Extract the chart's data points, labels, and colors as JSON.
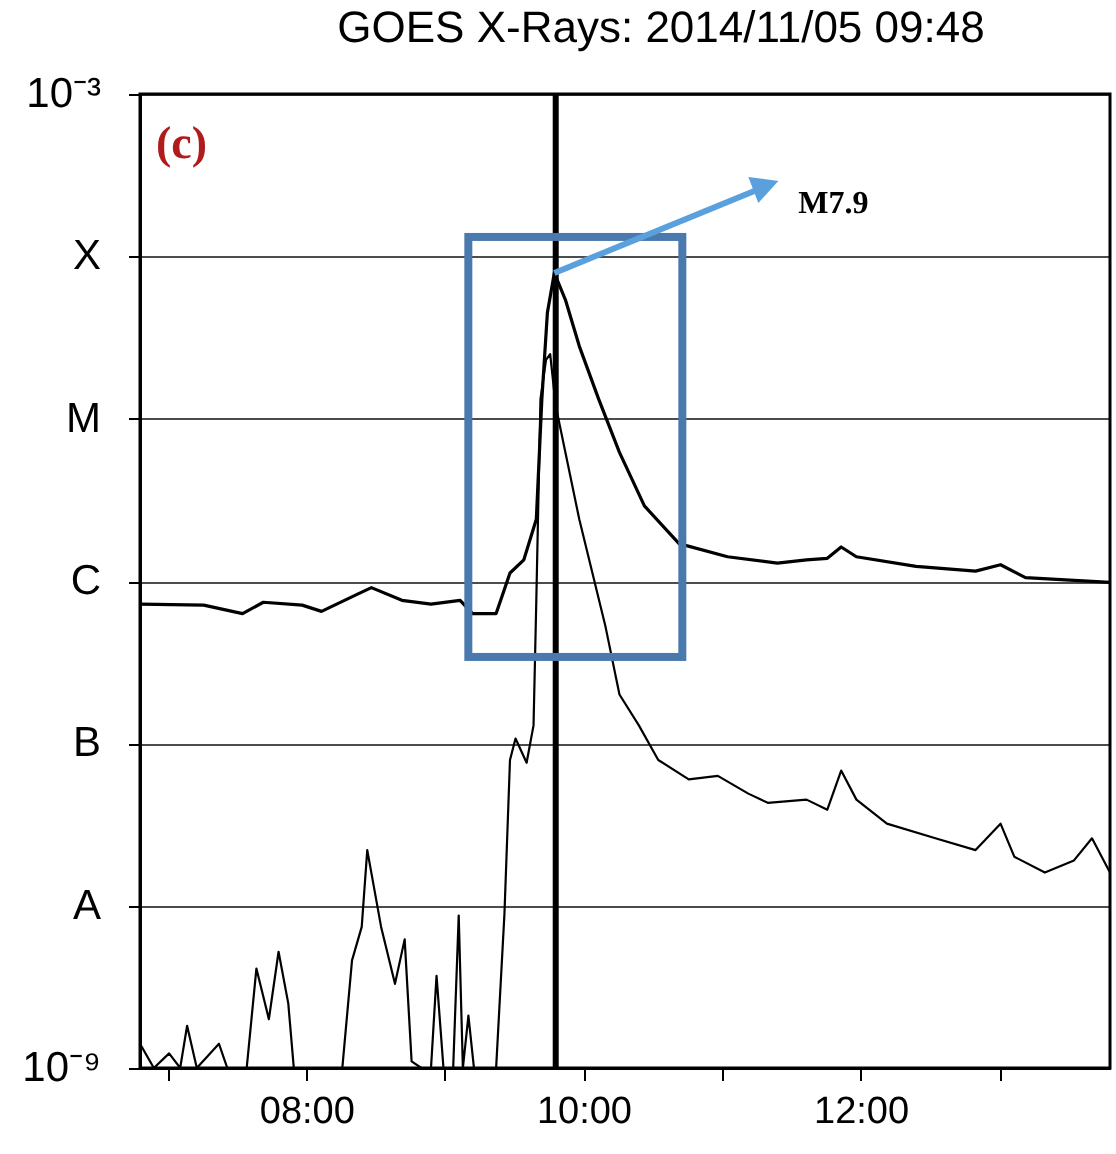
{
  "chart_data": {
    "type": "line",
    "title": "GOES X-Rays: 2014/11/05 09:48",
    "xlim": [
      6.8,
      13.8
    ],
    "xticks": [
      {
        "value": 7,
        "label": null
      },
      {
        "value": 8,
        "label": "08:00"
      },
      {
        "value": 9,
        "label": null
      },
      {
        "value": 10,
        "label": "10:00"
      },
      {
        "value": 11,
        "label": null
      },
      {
        "value": 12,
        "label": "12:00"
      },
      {
        "value": 13,
        "label": null
      }
    ],
    "ylim": [
      1e-09,
      0.001
    ],
    "log": true,
    "yticks": [
      {
        "value": 1e-09,
        "label": "10⁻⁹"
      },
      {
        "value": 1e-08,
        "label": "A"
      },
      {
        "value": 1e-07,
        "label": "B"
      },
      {
        "value": 1e-06,
        "label": "C"
      },
      {
        "value": 1e-05,
        "label": "M"
      },
      {
        "value": 0.0001,
        "label": "X"
      },
      {
        "value": 0.001,
        "label": "10⁻³"
      }
    ],
    "grid": "y",
    "marker": "none",
    "line_style": "solid",
    "series": [
      {
        "color": "#000000",
        "x": [
          6.8,
          7.26,
          7.54,
          7.69,
          7.97,
          8.11,
          8.37,
          8.47,
          8.69,
          8.9,
          9.11,
          9.2,
          9.37,
          9.47,
          9.57,
          9.66,
          9.7,
          9.74,
          9.79,
          9.87,
          9.97,
          10.11,
          10.26,
          10.44,
          10.69,
          11.04,
          11.4,
          11.61,
          11.76,
          11.86,
          11.97,
          12.4,
          12.83,
          13.01,
          13.19,
          13.8
        ],
        "values": [
          7.2e-07,
          7.1e-07,
          6.3e-07,
          7.4e-07,
          7.1e-07,
          6.5e-07,
          8.3e-07,
          9.1e-07,
          7.6e-07,
          7.2e-07,
          7.6e-07,
          6.3e-07,
          6.3e-07,
          1.12e-06,
          1.35e-06,
          2.4e-06,
          1.32e-05,
          4.5e-05,
          7.9e-05,
          5.4e-05,
          2.8e-05,
          1.32e-05,
          6.2e-06,
          2.9e-06,
          1.7e-06,
          1.41e-06,
          1.29e-06,
          1.35e-06,
          1.38e-06,
          1.62e-06,
          1.41e-06,
          1.23e-06,
          1.15e-06,
          1.26e-06,
          1.05e-06,
          9.8e-07
        ]
      },
      {
        "color": "#000000",
        "x": [
          6.8,
          6.9,
          7.01,
          7.09,
          7.14,
          7.21,
          7.37,
          7.43,
          7.57,
          7.64,
          7.73,
          7.8,
          7.87,
          7.91,
          8.26,
          8.33,
          8.4,
          8.44,
          8.54,
          8.64,
          8.71,
          8.76,
          8.83,
          8.9,
          8.94,
          8.99,
          9.06,
          9.1,
          9.13,
          9.17,
          9.21,
          9.37,
          9.43,
          9.47,
          9.51,
          9.59,
          9.64,
          9.66,
          9.69,
          9.73,
          9.76,
          9.8,
          9.97,
          10.16,
          10.26,
          10.4,
          10.54,
          10.76,
          10.97,
          11.19,
          11.33,
          11.61,
          11.76,
          11.86,
          11.97,
          12.19,
          12.54,
          12.83,
          13.01,
          13.11,
          13.33,
          13.54,
          13.67,
          13.8
        ],
        "values": [
          1.41e-09,
          1e-09,
          1.23e-09,
          1e-09,
          1.82e-09,
          1e-09,
          1.41e-09,
          1e-09,
          1e-09,
          4.1e-09,
          2e-09,
          5.2e-09,
          2.5e-09,
          1e-09,
          1e-09,
          4.6e-09,
          7.4e-09,
          2.2e-08,
          7.4e-09,
          3.3e-09,
          6.2e-09,
          1.1e-09,
          1e-09,
          1e-09,
          3.7e-09,
          1e-09,
          1e-09,
          8.7e-09,
          1e-09,
          2.1e-09,
          1e-09,
          1e-09,
          8.9e-09,
          7.9e-08,
          1.07e-07,
          7.6e-08,
          1.29e-07,
          7.6e-07,
          1.32e-05,
          2.3e-05,
          2.5e-05,
          1.2e-05,
          2.4e-06,
          5.2e-07,
          2e-07,
          1.29e-07,
          7.9e-08,
          6e-08,
          6.3e-08,
          4.9e-08,
          4.3e-08,
          4.5e-08,
          3.9e-08,
          6.8e-08,
          4.5e-08,
          3.2e-08,
          2.6e-08,
          2.2e-08,
          3.2e-08,
          2e-08,
          1.6e-08,
          1.9e-08,
          2.6e-08,
          1.6e-08
        ]
      }
    ],
    "ref_lines": [
      {
        "axis": "x",
        "value": 9.8,
        "color": "#000000"
      }
    ],
    "annotations": [
      "(c)",
      "M7.9"
    ]
  }
}
